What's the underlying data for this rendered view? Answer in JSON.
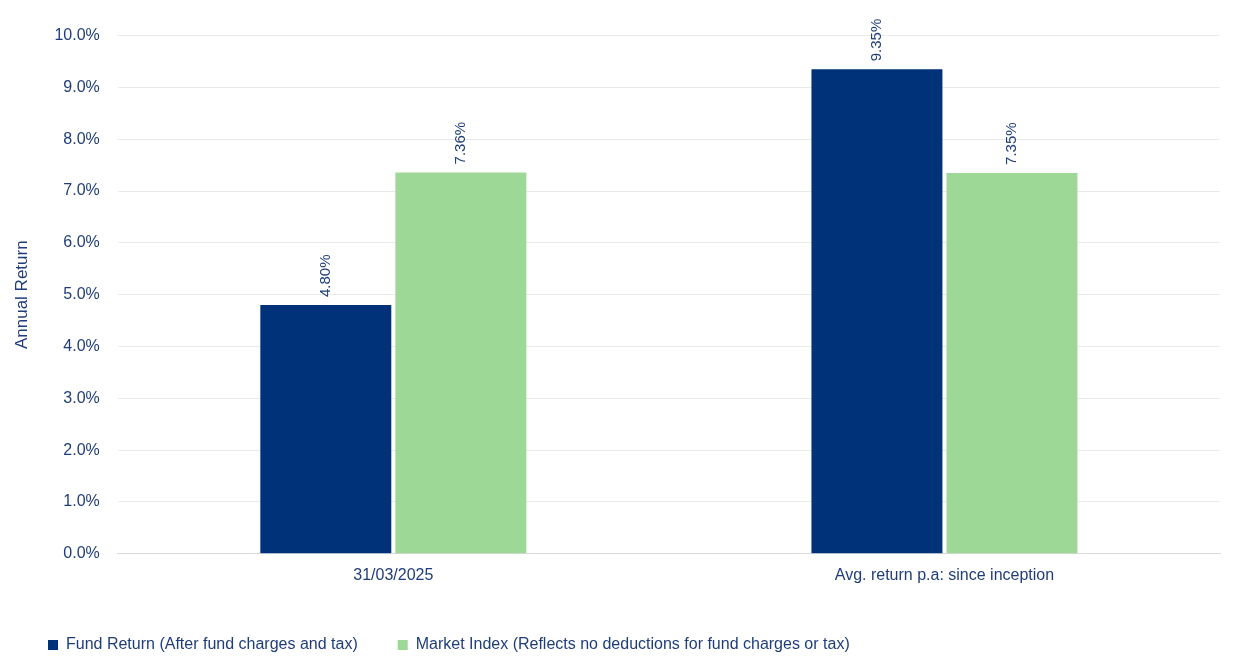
{
  "chart_data": {
    "type": "bar",
    "ylabel": "Annual Return",
    "categories": [
      "31/03/2025",
      "Avg. return p.a: since inception"
    ],
    "series": [
      {
        "name": "Fund Return (After fund charges and tax)",
        "color": "#00327a",
        "values": [
          4.8,
          9.35
        ],
        "value_labels": [
          "4.80%",
          "9.35%"
        ]
      },
      {
        "name": "Market Index (Reflects no deductions for fund charges or tax)",
        "color": "#9dd896",
        "values": [
          7.36,
          7.35
        ],
        "value_labels": [
          "7.36%",
          "7.35%"
        ]
      }
    ],
    "ylim": [
      0,
      10
    ],
    "yticks": [
      {
        "value": 0,
        "label": "0.0%"
      },
      {
        "value": 1,
        "label": "1.0%"
      },
      {
        "value": 2,
        "label": "2.0%"
      },
      {
        "value": 3,
        "label": "3.0%"
      },
      {
        "value": 4,
        "label": "4.0%"
      },
      {
        "value": 5,
        "label": "5.0%"
      },
      {
        "value": 6,
        "label": "6.0%"
      },
      {
        "value": 7,
        "label": "7.0%"
      },
      {
        "value": 8,
        "label": "8.0%"
      },
      {
        "value": 9,
        "label": "9.0%"
      },
      {
        "value": 10,
        "label": "10.0%"
      }
    ],
    "grid": "y",
    "legend": "bottom left"
  }
}
